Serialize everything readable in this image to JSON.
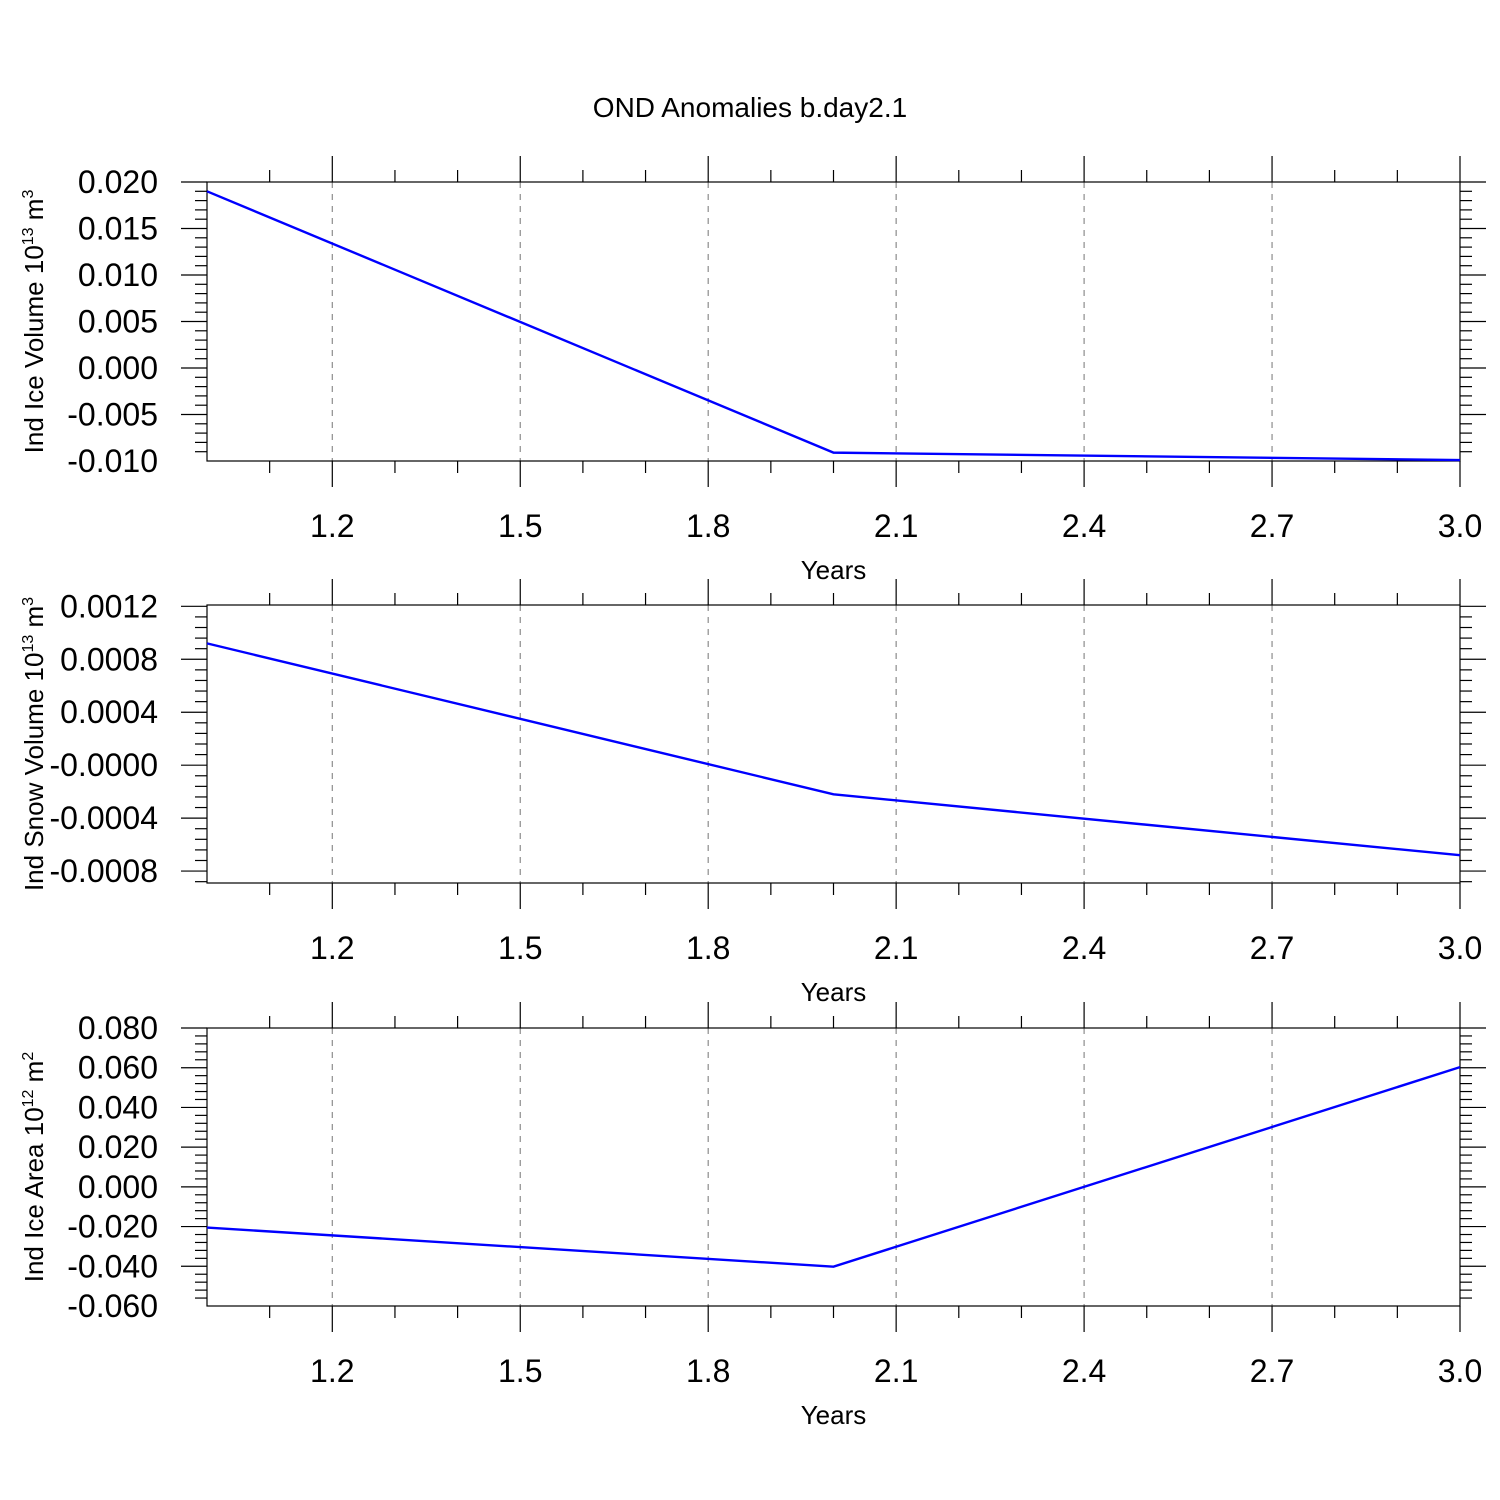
{
  "figure": {
    "title": "OND Anomalies b.day2.1"
  },
  "colors": {
    "line": "#0000ff",
    "axis": "#000000",
    "grid": "#8c8c8c"
  },
  "chart_data": [
    {
      "type": "line",
      "title": "OND Anomalies b.day2.1",
      "xlabel": "Years",
      "ylabel": "Ind Ice Volume 10",
      "ylabel_exp": "13",
      "ylabel_unit": " m",
      "ylabel_unit_exp": "3",
      "xlim": [
        1.0,
        3.0
      ],
      "ylim": [
        -0.01,
        0.02
      ],
      "x_ticks": [
        1.2,
        1.5,
        1.8,
        2.1,
        2.4,
        2.7,
        3.0
      ],
      "x_tick_labels": [
        "1.2",
        "1.5",
        "1.8",
        "2.1",
        "2.4",
        "2.7",
        "3.0"
      ],
      "y_ticks": [
        0.02,
        0.015,
        0.01,
        0.005,
        0.0,
        -0.005,
        -0.01
      ],
      "y_tick_labels": [
        "0.020",
        "0.015",
        "0.010",
        "0.005",
        "0.000",
        "-0.005",
        "-0.010"
      ],
      "grid": "vertical dashed",
      "series": [
        {
          "name": "Ind Ice Volume",
          "x": [
            1,
            2,
            3
          ],
          "values": [
            0.019,
            -0.0091,
            -0.0099
          ]
        }
      ]
    },
    {
      "type": "line",
      "xlabel": "Years",
      "ylabel": "Ind Snow Volume 10",
      "ylabel_exp": "13",
      "ylabel_unit": " m",
      "ylabel_unit_exp": "3",
      "xlim": [
        1.0,
        3.0
      ],
      "ylim": [
        -0.00089,
        0.00121
      ],
      "x_ticks": [
        1.2,
        1.5,
        1.8,
        2.1,
        2.4,
        2.7,
        3.0
      ],
      "x_tick_labels": [
        "1.2",
        "1.5",
        "1.8",
        "2.1",
        "2.4",
        "2.7",
        "3.0"
      ],
      "y_ticks": [
        0.0012,
        0.0008,
        0.0004,
        0.0,
        -0.0004,
        -0.0008
      ],
      "y_tick_labels": [
        "0.0012",
        "0.0008",
        "0.0004",
        "-0.0000",
        "-0.0004",
        "-0.0008"
      ],
      "grid": "vertical dashed",
      "series": [
        {
          "name": "Ind Snow Volume",
          "x": [
            1,
            2,
            3
          ],
          "values": [
            0.00092,
            -0.00022,
            -0.00068
          ]
        }
      ]
    },
    {
      "type": "line",
      "xlabel": "Years",
      "ylabel": "Ind Ice Area 10",
      "ylabel_exp": "12",
      "ylabel_unit": " m",
      "ylabel_unit_exp": "2",
      "xlim": [
        1.0,
        3.0
      ],
      "ylim": [
        -0.06,
        0.08
      ],
      "x_ticks": [
        1.2,
        1.5,
        1.8,
        2.1,
        2.4,
        2.7,
        3.0
      ],
      "x_tick_labels": [
        "1.2",
        "1.5",
        "1.8",
        "2.1",
        "2.4",
        "2.7",
        "3.0"
      ],
      "y_ticks": [
        0.08,
        0.06,
        0.04,
        0.02,
        0.0,
        -0.02,
        -0.04,
        -0.06
      ],
      "y_tick_labels": [
        "0.080",
        "0.060",
        "0.040",
        "0.020",
        "0.000",
        "-0.020",
        "-0.040",
        "-0.060"
      ],
      "grid": "vertical dashed",
      "series": [
        {
          "name": "Ind Ice Area",
          "x": [
            1,
            2,
            3
          ],
          "values": [
            -0.0205,
            -0.0402,
            0.0603
          ]
        }
      ]
    }
  ]
}
